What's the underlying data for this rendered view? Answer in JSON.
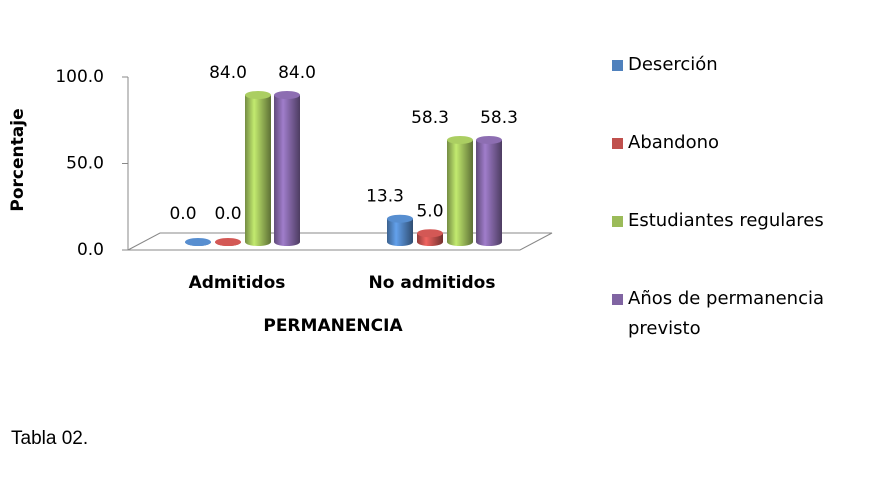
{
  "chart_data": {
    "type": "bar3d",
    "x_label": "PERMANENCIA",
    "y_label": "Porcentaje",
    "categories": [
      "Admitidos",
      "No admitidos"
    ],
    "series": [
      {
        "name": "Deserción",
        "color": "#4f81bd",
        "values": [
          0,
          13.3
        ],
        "value_labels": [
          "0.0",
          "13.3"
        ]
      },
      {
        "name": "Abandono",
        "color": "#c0504d",
        "values": [
          0,
          5
        ],
        "value_labels": [
          "0.0",
          "5.0"
        ]
      },
      {
        "name": "Estudiantes regulares",
        "color": "#9bbb59",
        "values": [
          84,
          58.3
        ],
        "value_labels": [
          "84.0",
          "58.3"
        ]
      },
      {
        "name": "Años de permanencia previsto",
        "color": "#8064a2",
        "values": [
          84,
          58.3
        ],
        "value_labels": [
          "84.0",
          "58.3"
        ]
      }
    ],
    "ylim": [
      0,
      100
    ],
    "yticks": [
      {
        "value": 0,
        "label": "0.0"
      },
      {
        "value": 50,
        "label": "50.0"
      },
      {
        "value": 100,
        "label": "100.0"
      }
    ],
    "legend": "right"
  },
  "caption": "Tabla 02."
}
